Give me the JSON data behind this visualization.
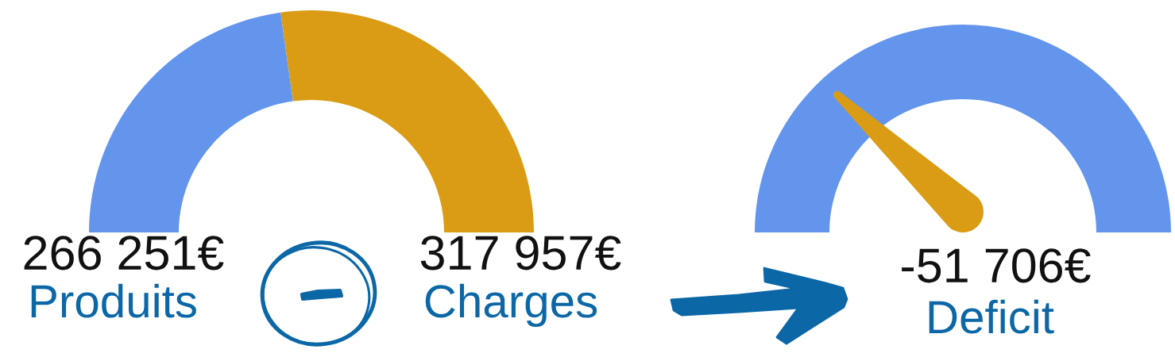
{
  "chart_data": [
    {
      "type": "donut",
      "categories": [
        "Produits",
        "Charges"
      ],
      "values": [
        266251,
        317957
      ],
      "colors": [
        "#6495ed",
        "#da9c15"
      ],
      "value_labels": [
        "266 251€",
        "317 957€"
      ]
    },
    {
      "type": "other",
      "categories": [
        "Deficit"
      ],
      "values": [
        -51706
      ],
      "value_labels": [
        "-51 706€"
      ]
    }
  ]
}
